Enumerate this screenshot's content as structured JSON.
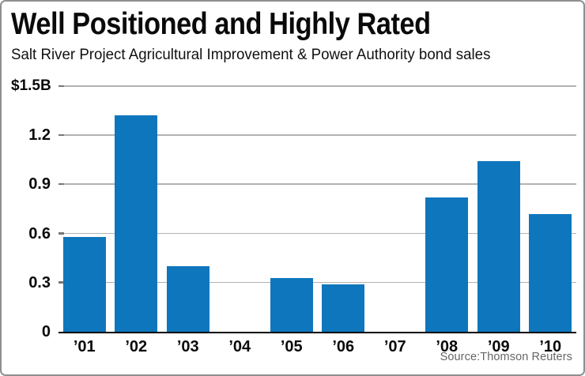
{
  "chart_data": {
    "type": "bar",
    "title": "Well Positioned and Highly Rated",
    "subtitle": "Salt River Project Agricultural Improvement & Power Authority bond sales",
    "categories": [
      "’01",
      "’02",
      "’03",
      "’04",
      "’05",
      "’06",
      "’07",
      "’08",
      "’09",
      "’10"
    ],
    "values": [
      0.58,
      1.32,
      0.4,
      0,
      0.33,
      0.29,
      0,
      0.82,
      1.04,
      0.72
    ],
    "unit": "billions of dollars",
    "y_ticks": [
      "$1.5B",
      "1.2",
      "0.9",
      "0.6",
      "0.3",
      "0"
    ],
    "ylim": [
      0,
      1.5
    ],
    "grid": true,
    "legend": "none",
    "source": "Source:Thomson Reuters",
    "colors": {
      "bar": "#0e76bc",
      "gridline": "#b2b2b2",
      "baseline": "#000000",
      "text": "#0a0a0a",
      "source_text": "#666666",
      "border": "#8f8f8f"
    }
  }
}
